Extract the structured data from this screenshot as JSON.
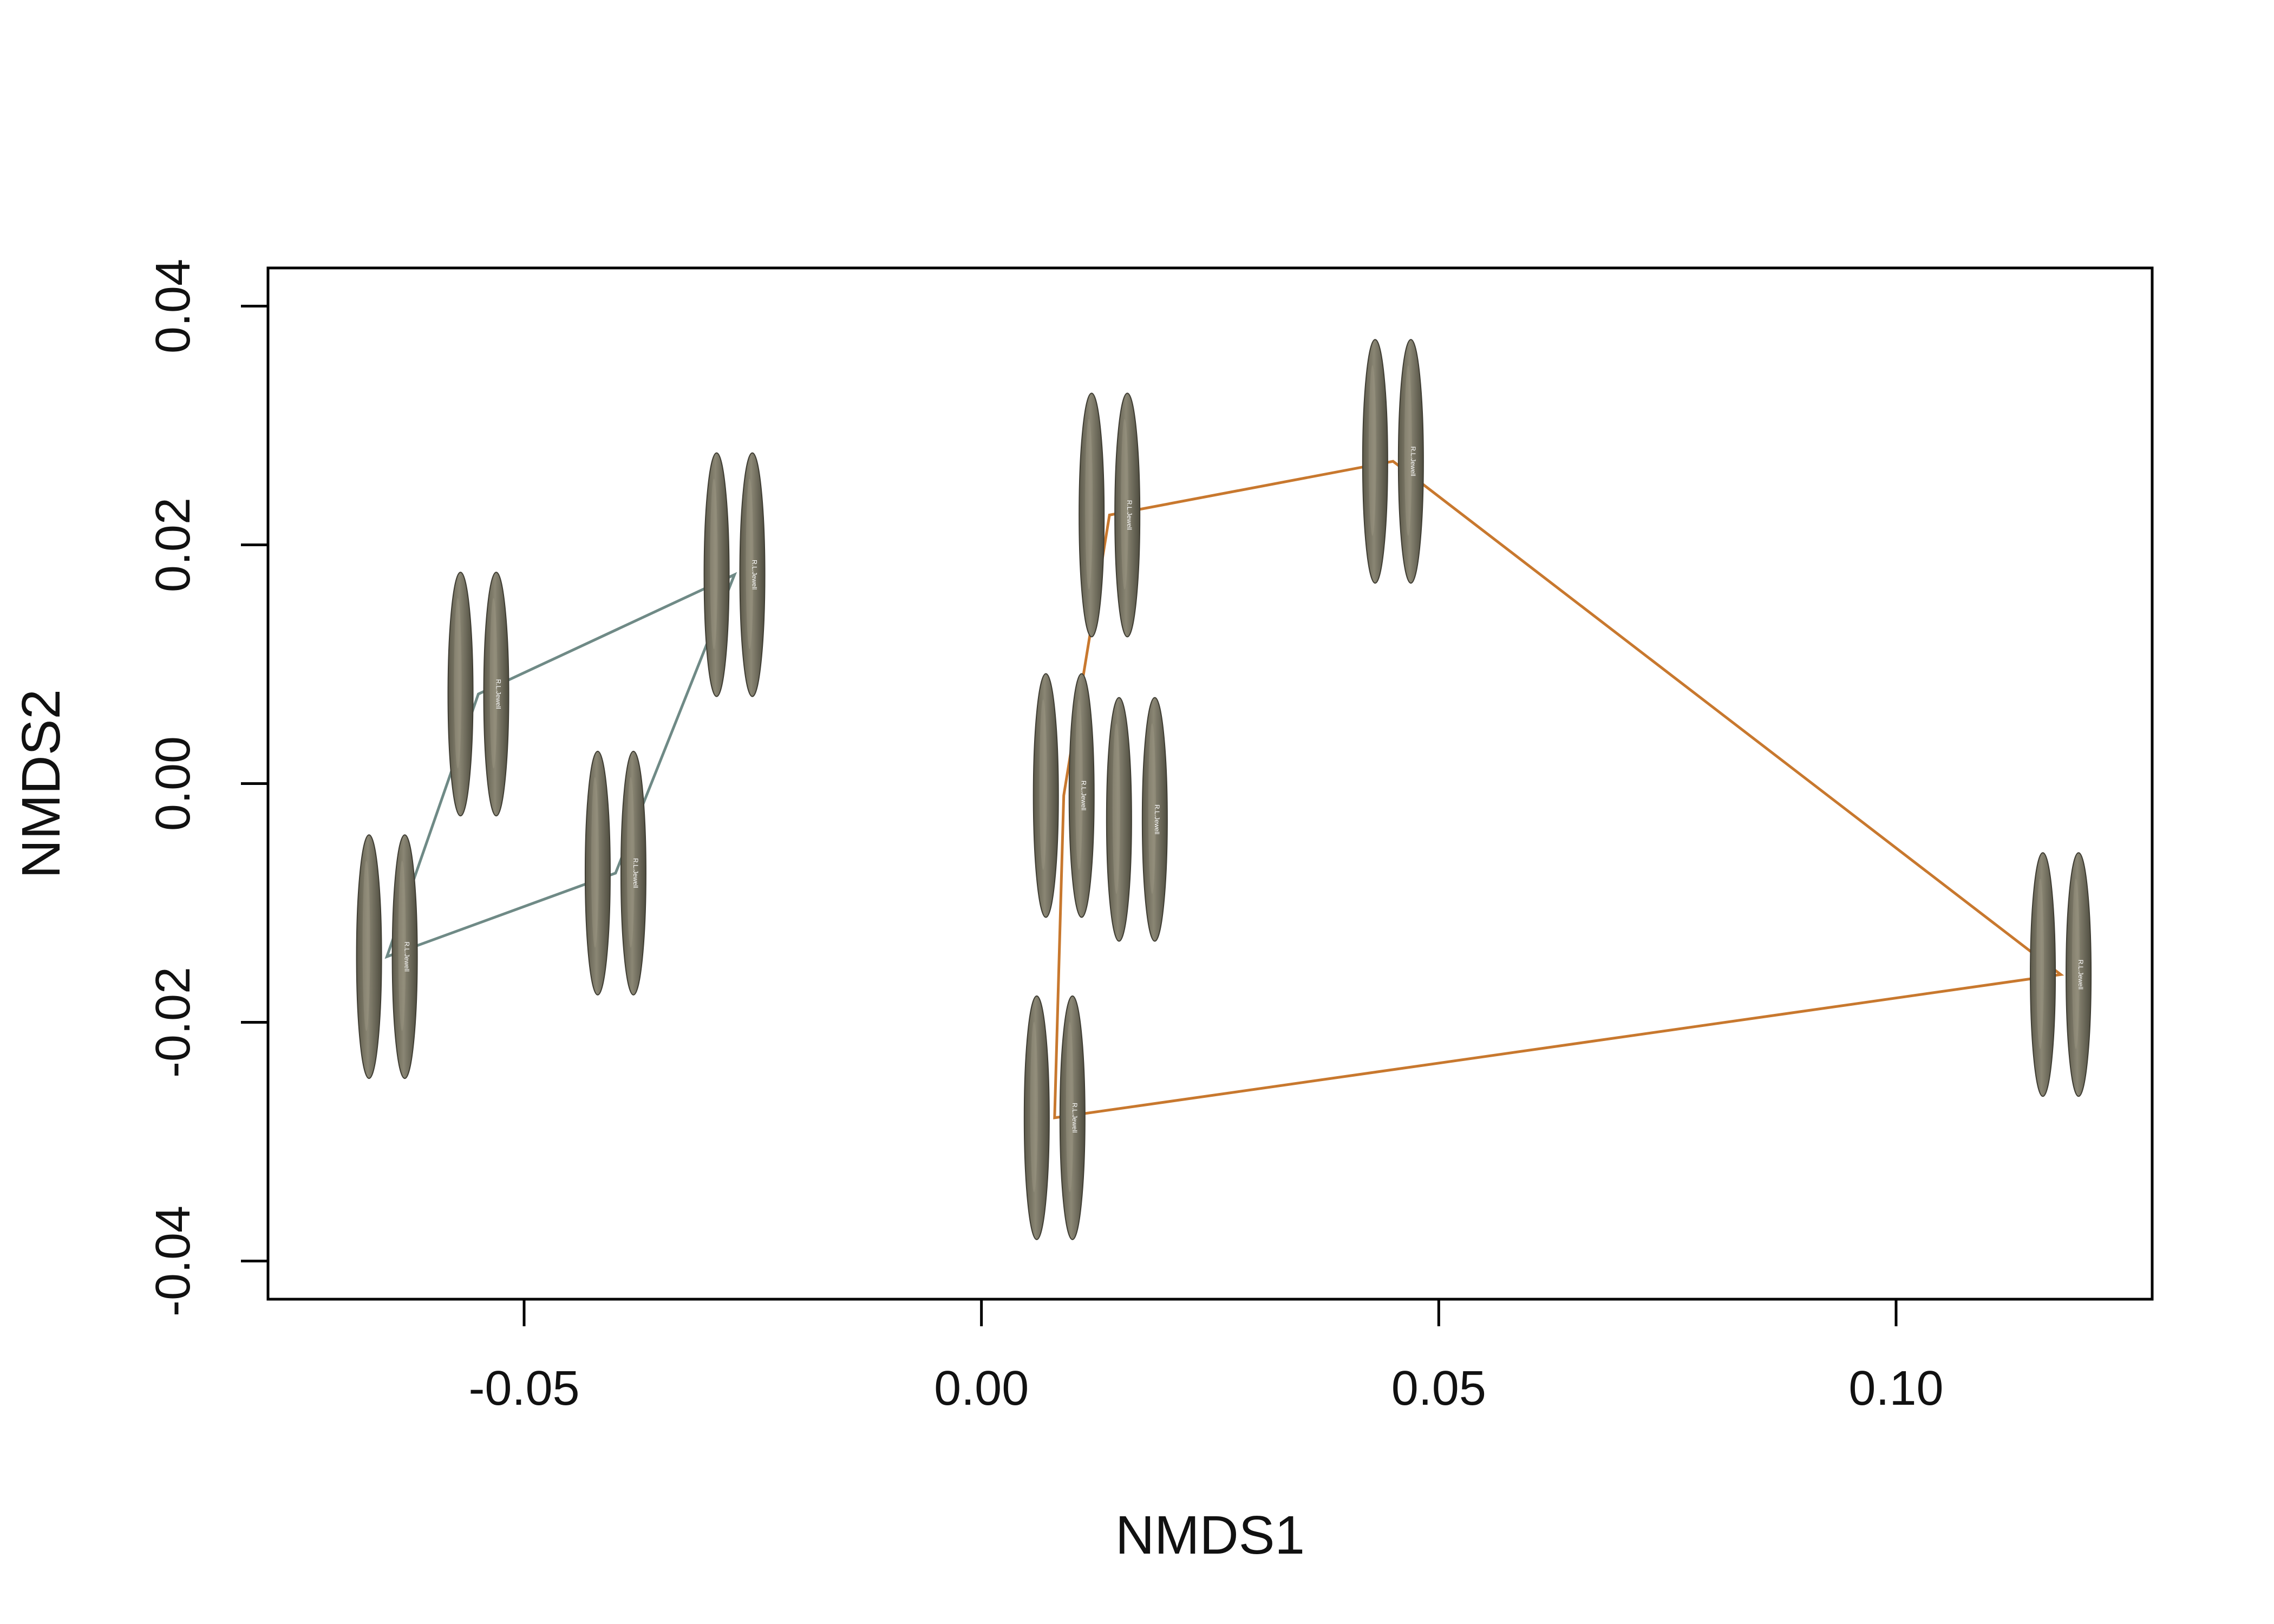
{
  "chart_data": {
    "type": "scatter",
    "title": "",
    "xlabel": "NMDS1",
    "ylabel": "NMDS2",
    "xlim": [
      -0.078,
      0.128
    ],
    "ylim": [
      -0.0432,
      0.0432
    ],
    "xticks": [
      -0.05,
      0.0,
      0.05,
      0.1
    ],
    "xtick_labels": [
      "-0.05",
      "0.00",
      "0.05",
      "0.10"
    ],
    "yticks": [
      -0.04,
      -0.02,
      0.0,
      0.02,
      0.04
    ],
    "ytick_labels": [
      "-0.04",
      "-0.02",
      "0.00",
      "0.02",
      "0.04"
    ],
    "grid": false,
    "legend": "none",
    "marker": "photograph of a lithic point (two faces)",
    "specimen_label": "R.L.Jewell",
    "series": [
      {
        "color": "#6f8a86",
        "points": [
          {
            "x": -0.065,
            "y": -0.0145
          },
          {
            "x": -0.055,
            "y": 0.0075
          },
          {
            "x": -0.04,
            "y": -0.0075
          },
          {
            "x": -0.027,
            "y": 0.0175
          }
        ],
        "hull_order": [
          0,
          1,
          3,
          2
        ]
      },
      {
        "color": "#c8782e",
        "points": [
          {
            "x": 0.008,
            "y": -0.028
          },
          {
            "x": 0.009,
            "y": -0.001
          },
          {
            "x": 0.014,
            "y": 0.0225
          },
          {
            "x": 0.045,
            "y": 0.027
          },
          {
            "x": 0.118,
            "y": -0.016
          },
          {
            "x": 0.017,
            "y": -0.003
          }
        ],
        "hull_order": [
          0,
          1,
          2,
          3,
          4
        ]
      }
    ]
  }
}
